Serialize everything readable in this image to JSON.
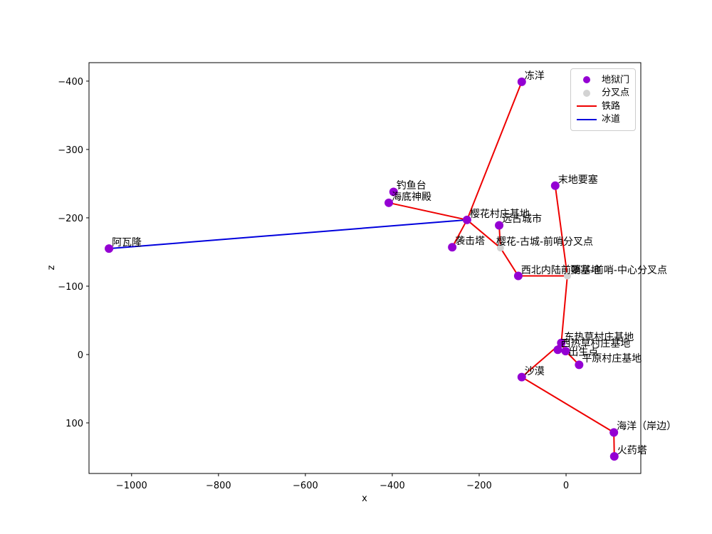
{
  "figure": {
    "xlabel": "x",
    "ylabel": "z"
  },
  "legend": {
    "items": [
      {
        "label": "地狱门",
        "marker": "dot",
        "color": "#9400d3"
      },
      {
        "label": "分叉点",
        "marker": "dot",
        "color": "#d3d3d3"
      },
      {
        "label": "铁路",
        "marker": "line",
        "color": "#ee0000"
      },
      {
        "label": "冰道",
        "marker": "line",
        "color": "#0000dd"
      }
    ]
  },
  "chart_data": {
    "type": "scatter",
    "title": "",
    "xlabel": "x",
    "ylabel": "z",
    "xlim": [
      -1098,
      172
    ],
    "zlim_top_to_bottom": [
      -427,
      174
    ],
    "y_axis_inverted": true,
    "grid": false,
    "legend_position": "upper right",
    "x_ticks": [
      -1000,
      -800,
      -600,
      -400,
      -200,
      0
    ],
    "z_ticks": [
      -400,
      -300,
      -200,
      -100,
      0,
      100
    ],
    "colors": {
      "gate": "#9400d3",
      "fork": "#d3d3d3",
      "rail": "#ee0000",
      "ice": "#0000dd"
    },
    "nodes": [
      {
        "id": "dongyang",
        "label": "冻洋",
        "x": -102,
        "z": -399,
        "kind": "gate"
      },
      {
        "id": "modiyaosai",
        "label": "末地要塞",
        "x": -25,
        "z": -247,
        "kind": "gate"
      },
      {
        "id": "diaoyutai",
        "label": "钓鱼台",
        "x": -397,
        "z": -238,
        "kind": "gate"
      },
      {
        "id": "haidishendian",
        "label": "海底神殿",
        "x": -408,
        "z": -222,
        "kind": "gate"
      },
      {
        "id": "yinghua",
        "label": "樱花村庄基地",
        "x": -228,
        "z": -197,
        "kind": "gate"
      },
      {
        "id": "yuangu",
        "label": "远古城市",
        "x": -154,
        "z": -189,
        "kind": "gate"
      },
      {
        "id": "xijita",
        "label": "袭击塔",
        "x": -262,
        "z": -157,
        "kind": "gate"
      },
      {
        "id": "fork_yinghua",
        "label": "樱花-古城-前哨分叉点",
        "x": -151,
        "z": -156,
        "kind": "fork",
        "label_dx": -10
      },
      {
        "id": "xibei",
        "label": "西北内陆前哨基地",
        "x": -110,
        "z": -115,
        "kind": "gate"
      },
      {
        "id": "fork_yaosai",
        "label": "要塞-前哨-中心分叉点",
        "x": 3,
        "z": -115,
        "kind": "fork"
      },
      {
        "id": "dongrecao",
        "label": "东热草村庄基地",
        "x": -11,
        "z": -17,
        "kind": "gate"
      },
      {
        "id": "xirecao",
        "label": "西热草村庄基地",
        "x": -19,
        "z": -7,
        "kind": "gate"
      },
      {
        "id": "chushengdian",
        "label": "出生点",
        "x": -1,
        "z": -5,
        "kind": "gate",
        "label_dy": 10
      },
      {
        "id": "pingyuan",
        "label": "平原村庄基地",
        "x": 30,
        "z": 15,
        "kind": "gate"
      },
      {
        "id": "shamo",
        "label": "沙漠",
        "x": -102,
        "z": 33,
        "kind": "gate"
      },
      {
        "id": "haiyang",
        "label": "海洋（岸边）",
        "x": 110,
        "z": 114,
        "kind": "gate"
      },
      {
        "id": "huoyaota",
        "label": "火药塔",
        "x": 111,
        "z": 149,
        "kind": "gate"
      },
      {
        "id": "awalong",
        "label": "阿瓦隆",
        "x": -1052,
        "z": -155,
        "kind": "gate"
      }
    ],
    "edges": [
      {
        "from": "dongyang",
        "to": "yinghua",
        "kind": "rail"
      },
      {
        "from": "yinghua",
        "to": "haidishendian",
        "kind": "rail"
      },
      {
        "from": "yinghua",
        "to": "xijita",
        "kind": "rail"
      },
      {
        "from": "yinghua",
        "to": "fork_yinghua",
        "kind": "rail"
      },
      {
        "from": "yuangu",
        "to": "fork_yinghua",
        "kind": "rail"
      },
      {
        "from": "fork_yinghua",
        "to": "xibei",
        "kind": "rail"
      },
      {
        "from": "xibei",
        "to": "fork_yaosai",
        "kind": "rail"
      },
      {
        "from": "fork_yaosai",
        "to": "modiyaosai",
        "kind": "rail"
      },
      {
        "from": "fork_yaosai",
        "to": "dongrecao",
        "kind": "rail"
      },
      {
        "from": "dongrecao",
        "to": "chushengdian",
        "kind": "rail"
      },
      {
        "from": "chushengdian",
        "to": "pingyuan",
        "kind": "rail"
      },
      {
        "from": "dongrecao",
        "to": "shamo",
        "kind": "rail"
      },
      {
        "from": "shamo",
        "to": "haiyang",
        "kind": "rail"
      },
      {
        "from": "haiyang",
        "to": "huoyaota",
        "kind": "rail"
      },
      {
        "from": "awalong",
        "to": "yinghua",
        "kind": "ice"
      }
    ]
  }
}
